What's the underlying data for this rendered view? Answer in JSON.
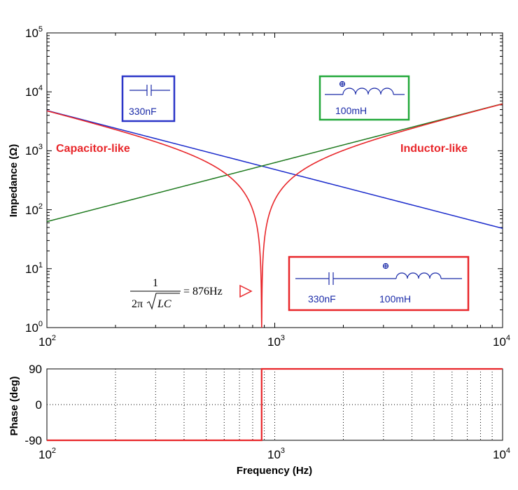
{
  "chart_data": [
    {
      "type": "line",
      "xscale": "log",
      "yscale": "log",
      "xlim": [
        100,
        10000
      ],
      "ylim": [
        1,
        100000
      ],
      "xticks": [
        {
          "base": "10",
          "exp": "2"
        },
        {
          "base": "10",
          "exp": "3"
        },
        {
          "base": "10",
          "exp": "4"
        }
      ],
      "yticks": [
        {
          "base": "10",
          "exp": "0"
        },
        {
          "base": "10",
          "exp": "1"
        },
        {
          "base": "10",
          "exp": "2"
        },
        {
          "base": "10",
          "exp": "3"
        },
        {
          "base": "10",
          "exp": "4"
        },
        {
          "base": "10",
          "exp": "5"
        }
      ],
      "ylabel": "Impedance (Ω)",
      "grid": false,
      "series": [
        {
          "name": "330nF capacitor",
          "color": "#1a2acb",
          "formula": "1/(2*pi*f*C)",
          "C_farad": 3.3e-07
        },
        {
          "name": "100mH inductor",
          "color": "#1f7a1f",
          "formula": "2*pi*f*L",
          "L_henry": 0.1
        },
        {
          "name": "series LC",
          "color": "#e8262a",
          "formula": "|2*pi*f*L - 1/(2*pi*f*C)|"
        }
      ],
      "annotations": {
        "capacitor_like": "Capacitor-like",
        "inductor_like": "Inductor-like",
        "formula_numerator": "1",
        "formula_den_prefix": "2π",
        "formula_den_radicand": "LC",
        "formula_result": "= 876Hz",
        "resonance_hz": 876
      },
      "component_boxes": {
        "capacitor": {
          "label": "330nF",
          "color": "#2b35c8"
        },
        "inductor": {
          "label": "100mH",
          "color": "#22a83a"
        },
        "series": {
          "cap_label": "330nF",
          "ind_label": "100mH",
          "color": "#e8262a"
        }
      }
    },
    {
      "type": "line",
      "xscale": "log",
      "xlim": [
        100,
        10000
      ],
      "ylim": [
        -90,
        90
      ],
      "xticks": [
        {
          "base": "10",
          "exp": "2"
        },
        {
          "base": "10",
          "exp": "3"
        },
        {
          "base": "10",
          "exp": "4"
        }
      ],
      "yticks": [
        "90",
        "0",
        "-90"
      ],
      "ylabel": "Phase (deg)",
      "xlabel": "Frequency (Hz)",
      "grid": true,
      "series": [
        {
          "name": "phase",
          "color": "#e8262a",
          "x": [
            100,
            876,
            876,
            10000
          ],
          "values": [
            -90,
            -90,
            90,
            90
          ]
        }
      ]
    }
  ]
}
